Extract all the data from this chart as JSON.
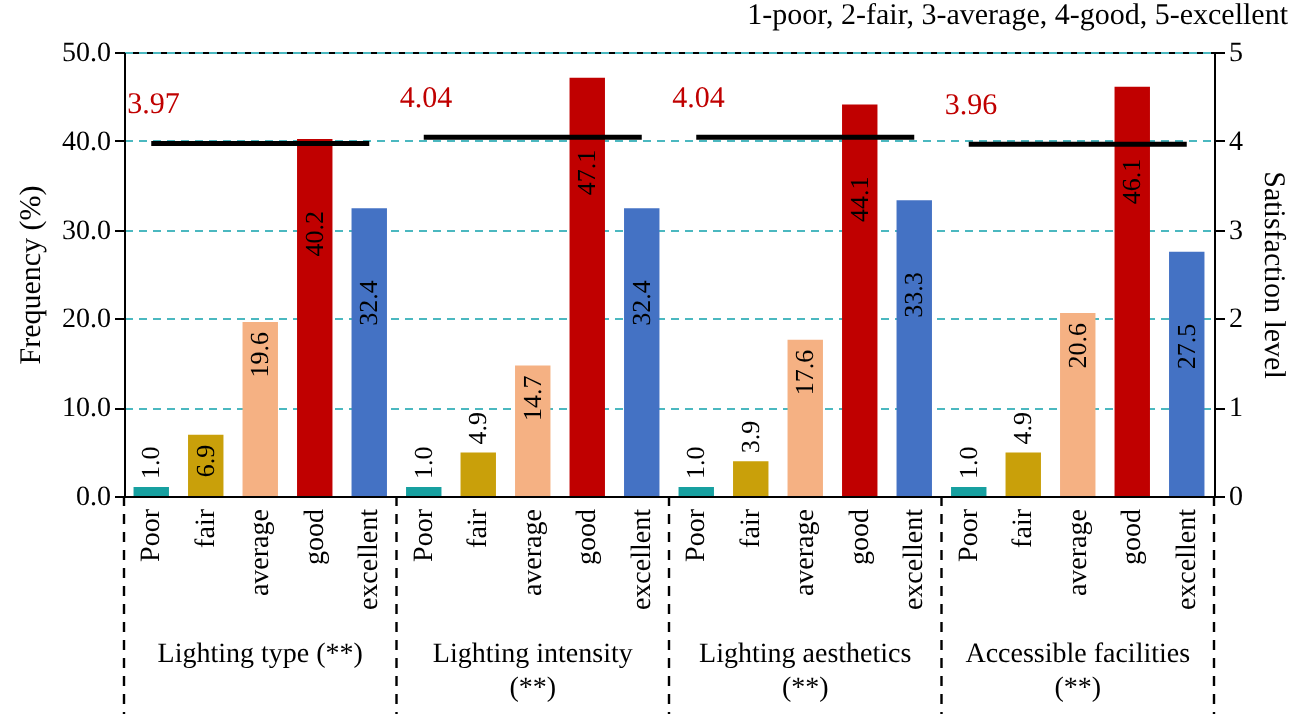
{
  "chart_data": {
    "type": "bar",
    "title": "1-poor, 2-fair, 3-average, 4-good, 5-excellent",
    "ylabel": "Frequency (%)",
    "y2label": "Satisfaction level",
    "categories": [
      "Poor",
      "fair",
      "average",
      "good",
      "excellent",
      "Poor",
      "fair",
      "average",
      "good",
      "excellent",
      "Poor",
      "fair",
      "average",
      "good",
      "excellent",
      "Poor",
      "fair",
      "average",
      "good",
      "excellent"
    ],
    "series": [
      {
        "colors": [
          "#17a0a0",
          "#c9a00a",
          "#f5b183",
          "#c00000",
          "#4472c4",
          "#17a0a0",
          "#c9a00a",
          "#f5b183",
          "#c00000",
          "#4472c4",
          "#17a0a0",
          "#c9a00a",
          "#f5b183",
          "#c00000",
          "#4472c4",
          "#17a0a0",
          "#c9a00a",
          "#f5b183",
          "#c00000",
          "#4472c4"
        ],
        "values": [
          1.0,
          6.9,
          19.6,
          40.2,
          32.4,
          1.0,
          4.9,
          14.7,
          47.1,
          32.4,
          1.0,
          3.9,
          17.6,
          44.1,
          33.3,
          1.0,
          4.9,
          20.6,
          46.1,
          27.5
        ],
        "value_labels": [
          "1.0",
          "6.9",
          "19.6",
          "40.2",
          "32.4",
          "1.0",
          "4.9",
          "14.7",
          "47.1",
          "32.4",
          "1.0",
          "3.9",
          "17.6",
          "44.1",
          "33.3",
          "1.0",
          "4.9",
          "20.6",
          "46.1",
          "27.5"
        ]
      },
      {
        "type": "line",
        "axis": "y2",
        "color": "#000000",
        "values": [
          3.97,
          3.97,
          3.97,
          3.97,
          3.97,
          null,
          null,
          null,
          null,
          null,
          null,
          null,
          null,
          null,
          null,
          null,
          null,
          null,
          null,
          null
        ],
        "value_labels": [
          "3.97",
          null,
          null,
          null,
          null,
          null,
          null,
          null,
          null,
          null,
          null,
          null,
          null,
          null,
          null,
          null,
          null,
          null,
          null,
          null
        ]
      },
      {
        "type": "line",
        "axis": "y2",
        "color": "#000000",
        "values": [
          null,
          null,
          null,
          null,
          null,
          4.04,
          4.04,
          4.04,
          4.04,
          4.04,
          null,
          null,
          null,
          null,
          null,
          null,
          null,
          null,
          null,
          null
        ],
        "value_labels": [
          null,
          null,
          null,
          null,
          null,
          "4.04",
          null,
          null,
          null,
          null,
          null,
          null,
          null,
          null,
          null,
          null,
          null,
          null,
          null,
          null
        ]
      },
      {
        "type": "line",
        "axis": "y2",
        "color": "#000000",
        "values": [
          null,
          null,
          null,
          null,
          null,
          null,
          null,
          null,
          null,
          null,
          4.04,
          4.04,
          4.04,
          4.04,
          4.04,
          null,
          null,
          null,
          null,
          null
        ],
        "value_labels": [
          null,
          null,
          null,
          null,
          null,
          null,
          null,
          null,
          null,
          null,
          "4.04",
          null,
          null,
          null,
          null,
          null,
          null,
          null,
          null,
          null
        ]
      },
      {
        "type": "line",
        "axis": "y2",
        "color": "#000000",
        "values": [
          null,
          null,
          null,
          null,
          null,
          null,
          null,
          null,
          null,
          null,
          null,
          null,
          null,
          null,
          null,
          3.96,
          3.96,
          3.96,
          3.96,
          3.96
        ],
        "value_labels": [
          null,
          null,
          null,
          null,
          null,
          null,
          null,
          null,
          null,
          null,
          null,
          null,
          null,
          null,
          null,
          "3.96",
          null,
          null,
          null,
          null
        ]
      }
    ],
    "ylim": [
      0,
      50
    ],
    "yticks": [
      {
        "value": 0,
        "label": "0.0"
      },
      {
        "value": 10,
        "label": "10.0"
      },
      {
        "value": 20,
        "label": "20.0"
      },
      {
        "value": 30,
        "label": "30.0"
      },
      {
        "value": 40,
        "label": "40.0"
      },
      {
        "value": 50,
        "label": "50.0"
      }
    ],
    "y2lim": [
      0,
      5
    ],
    "y2ticks": [
      0,
      1,
      2,
      3,
      4,
      5
    ],
    "grid": "y",
    "annotations": [
      "Lighting type (**)",
      "Lighting intensity (**)",
      "Lighting aesthetics (**)",
      "Accessible facilities (**)"
    ]
  }
}
